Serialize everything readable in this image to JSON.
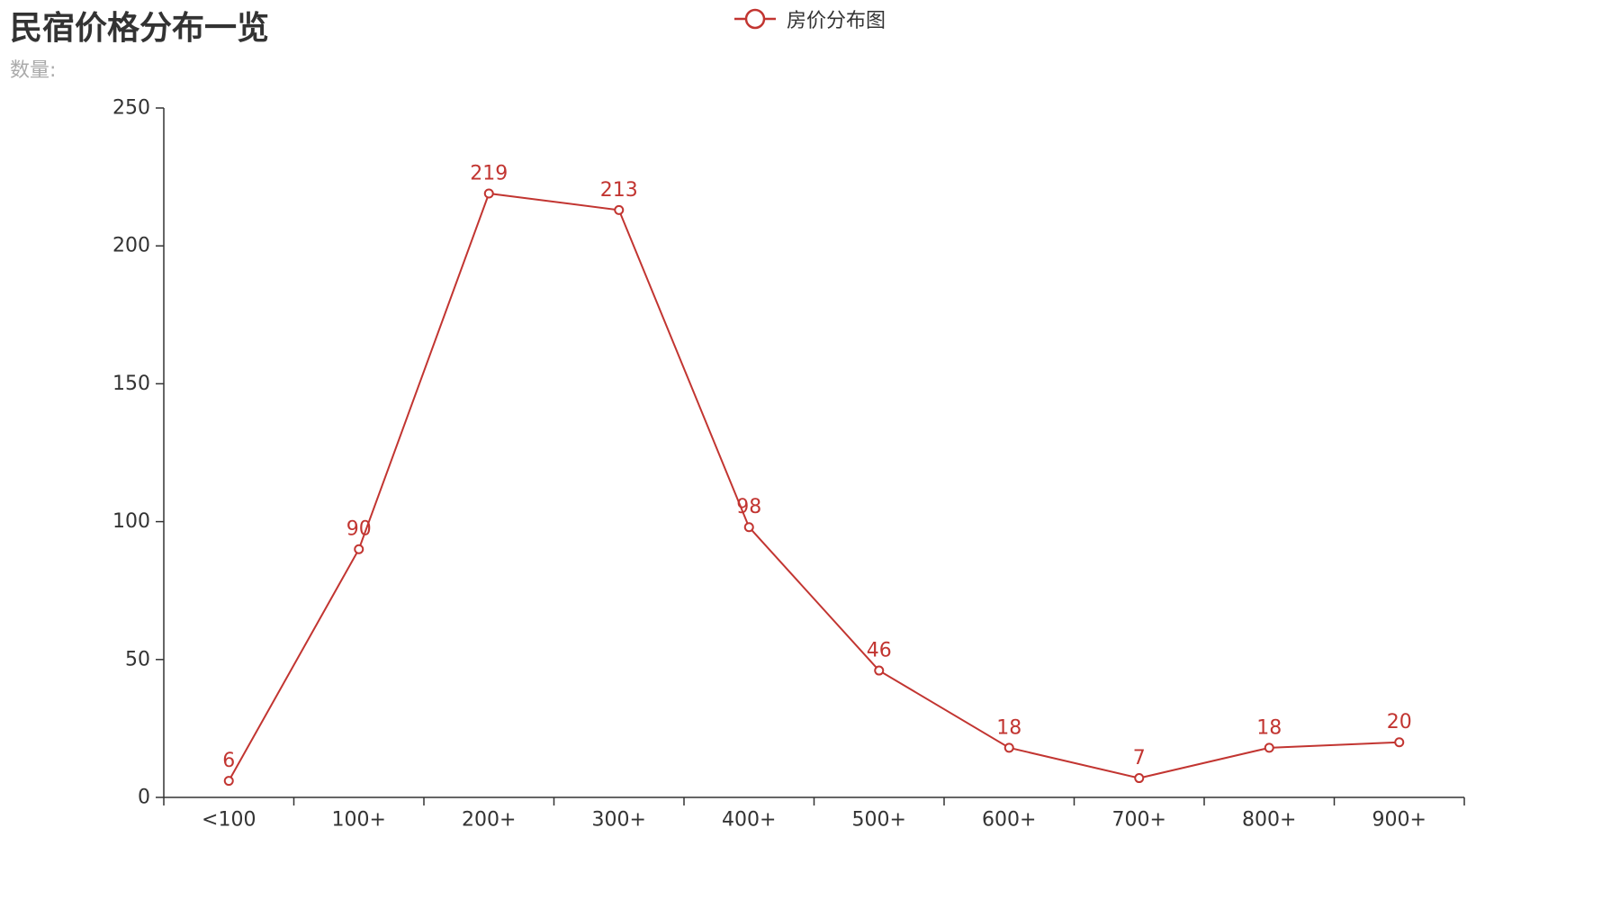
{
  "chart_data": {
    "type": "line",
    "title": "民宿价格分布一览",
    "subtitle": "数量:",
    "categories": [
      "<100",
      "100+",
      "200+",
      "300+",
      "400+",
      "500+",
      "600+",
      "700+",
      "800+",
      "900+"
    ],
    "series": [
      {
        "name": "房价分布图",
        "values": [
          6,
          90,
          219,
          213,
          98,
          46,
          18,
          7,
          18,
          20
        ]
      }
    ],
    "ylim": [
      0,
      250
    ],
    "yticks": [
      0,
      50,
      100,
      150,
      200,
      250
    ],
    "grid": false,
    "legend": "top-center",
    "colors": {
      "series": "#c23531",
      "axis": "#333333",
      "title": "#333333",
      "subtitle": "#aaaaaa"
    }
  }
}
